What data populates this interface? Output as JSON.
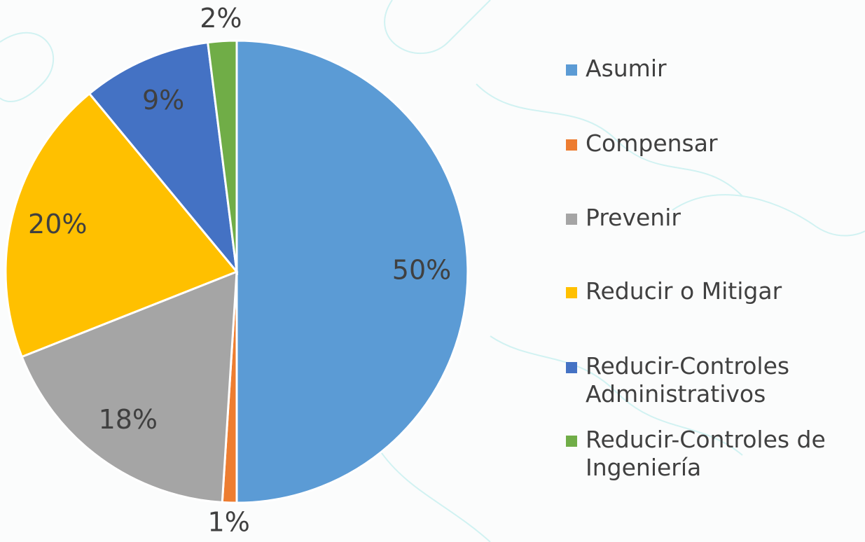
{
  "chart_data": {
    "type": "pie",
    "categories": [
      "Asumir",
      "Compensar",
      "Prevenir",
      "Reducir o Mitigar",
      "Reducir-Controles Administrativos",
      "Reducir-Controles de Ingeniería"
    ],
    "values": [
      50,
      1,
      18,
      20,
      9,
      2
    ],
    "value_labels": [
      "50%",
      "1%",
      "18%",
      "20%",
      "9%",
      "2%"
    ],
    "colors": [
      "#5b9bd5",
      "#ed7d31",
      "#a5a5a5",
      "#ffc000",
      "#4472c4",
      "#70ad47"
    ],
    "legend": "right"
  }
}
